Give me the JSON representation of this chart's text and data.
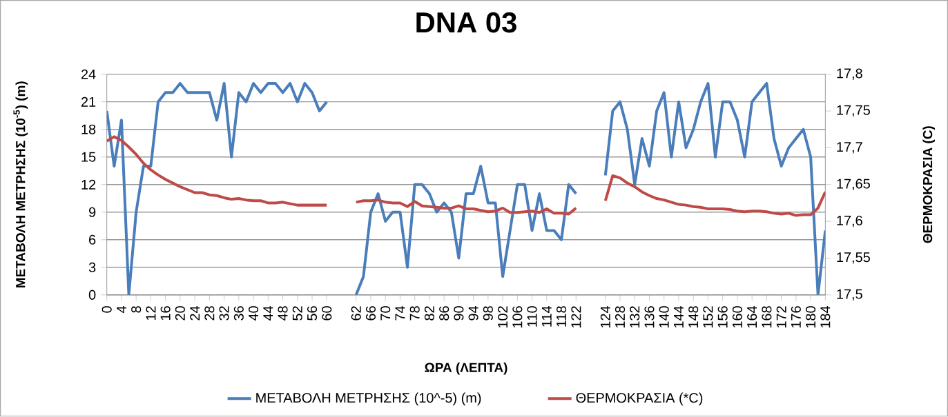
{
  "chart_data": {
    "type": "line",
    "title": "DNA 03",
    "xlabel": "ΩΡΑ (ΛΕΠΤΑ)",
    "ylabel": "ΜΕΤΑΒΟΛΗ ΜΕΤΡΗΣΗΣ (10$^{-5}$) (m)",
    "y2label": "ΘΕΡΜΟΚΡΑΣΙΑ (C)",
    "categories": [
      "0",
      null,
      "4",
      null,
      "8",
      null,
      "12",
      null,
      "16",
      null,
      "20",
      null,
      "24",
      null,
      "28",
      null,
      "32",
      null,
      "36",
      null,
      "40",
      null,
      "44",
      null,
      "48",
      null,
      "52",
      null,
      "56",
      null,
      "60",
      null,
      null,
      null,
      "62",
      null,
      "66",
      null,
      "70",
      null,
      "74",
      null,
      "78",
      null,
      "82",
      null,
      "86",
      null,
      "90",
      null,
      "94",
      null,
      "98",
      null,
      "102",
      null,
      "106",
      null,
      "110",
      null,
      "114",
      null,
      "118",
      null,
      "122",
      null,
      null,
      null,
      "124",
      null,
      "128",
      null,
      "132",
      null,
      "136",
      null,
      "140",
      null,
      "144",
      null,
      "148",
      null,
      "152",
      null,
      "156",
      null,
      "160",
      null,
      "164",
      null,
      "168",
      null,
      "172",
      null,
      "176",
      null,
      "180",
      null,
      "184"
    ],
    "series": [
      {
        "name": "ΜΕΤΑΒΟΛΗ ΜΕΤΡΗΣΗΣ (10^-5) (m)",
        "color": "#4a7ebb",
        "values": [
          20,
          14,
          19,
          0,
          9,
          14,
          14,
          21,
          22,
          22,
          23,
          22,
          22,
          22,
          22,
          19,
          23,
          15,
          22,
          21,
          23,
          22,
          23,
          23,
          22,
          23,
          21,
          23,
          22,
          20,
          21,
          null,
          null,
          null,
          0,
          2,
          9,
          11,
          8,
          9,
          9,
          3,
          12,
          12,
          11,
          9,
          10,
          9,
          4,
          11,
          11,
          14,
          10,
          10,
          2,
          7,
          12,
          12,
          7,
          11,
          7,
          7,
          6,
          12,
          11,
          null,
          null,
          null,
          13,
          20,
          21,
          18,
          12,
          17,
          14,
          20,
          22,
          15,
          21,
          16,
          18,
          21,
          23,
          15,
          21,
          21,
          19,
          15,
          21,
          22,
          23,
          17,
          14,
          16,
          17,
          18,
          15,
          0,
          7
        ]
      },
      {
        "name": "ΘΕΡΜΟΚΡΑΣΙΑ (*C)",
        "color": "#be4b48",
        "axis": "y2",
        "values": [
          17.709,
          17.715,
          17.71,
          17.701,
          17.691,
          17.679,
          17.67,
          17.663,
          17.657,
          17.652,
          17.647,
          17.643,
          17.639,
          17.639,
          17.636,
          17.635,
          17.632,
          17.63,
          17.631,
          17.629,
          17.628,
          17.628,
          17.625,
          17.625,
          17.626,
          17.624,
          17.622,
          17.622,
          17.622,
          17.622,
          17.622,
          null,
          null,
          null,
          17.626,
          17.628,
          17.628,
          17.629,
          17.626,
          17.625,
          17.625,
          17.62,
          17.627,
          17.621,
          17.62,
          17.619,
          17.618,
          17.618,
          17.621,
          17.617,
          17.617,
          17.615,
          17.613,
          17.614,
          17.618,
          17.612,
          17.612,
          17.613,
          17.614,
          17.612,
          17.617,
          17.611,
          17.611,
          17.61,
          17.618,
          null,
          null,
          null,
          17.628,
          17.662,
          17.659,
          17.652,
          17.647,
          17.64,
          17.635,
          17.631,
          17.629,
          17.626,
          17.623,
          17.622,
          17.62,
          17.619,
          17.617,
          17.617,
          17.617,
          17.616,
          17.614,
          17.613,
          17.614,
          17.614,
          17.613,
          17.611,
          17.61,
          17.611,
          17.608,
          17.609,
          17.609,
          17.618,
          17.64
        ]
      }
    ],
    "ylim": [
      0,
      24
    ],
    "yticks": [
      0,
      3,
      6,
      9,
      12,
      15,
      18,
      21,
      24
    ],
    "y2lim": [
      17.5,
      17.8
    ],
    "y2ticks": [
      {
        "value": 17.5,
        "label": "17,5"
      },
      {
        "value": 17.55,
        "label": "17,55"
      },
      {
        "value": 17.6,
        "label": "17,6"
      },
      {
        "value": 17.65,
        "label": "17,65"
      },
      {
        "value": 17.7,
        "label": "17,7"
      },
      {
        "value": 17.75,
        "label": "17,75"
      },
      {
        "value": 17.8,
        "label": "17,8"
      }
    ],
    "grid": "y",
    "legend": "bottom"
  }
}
